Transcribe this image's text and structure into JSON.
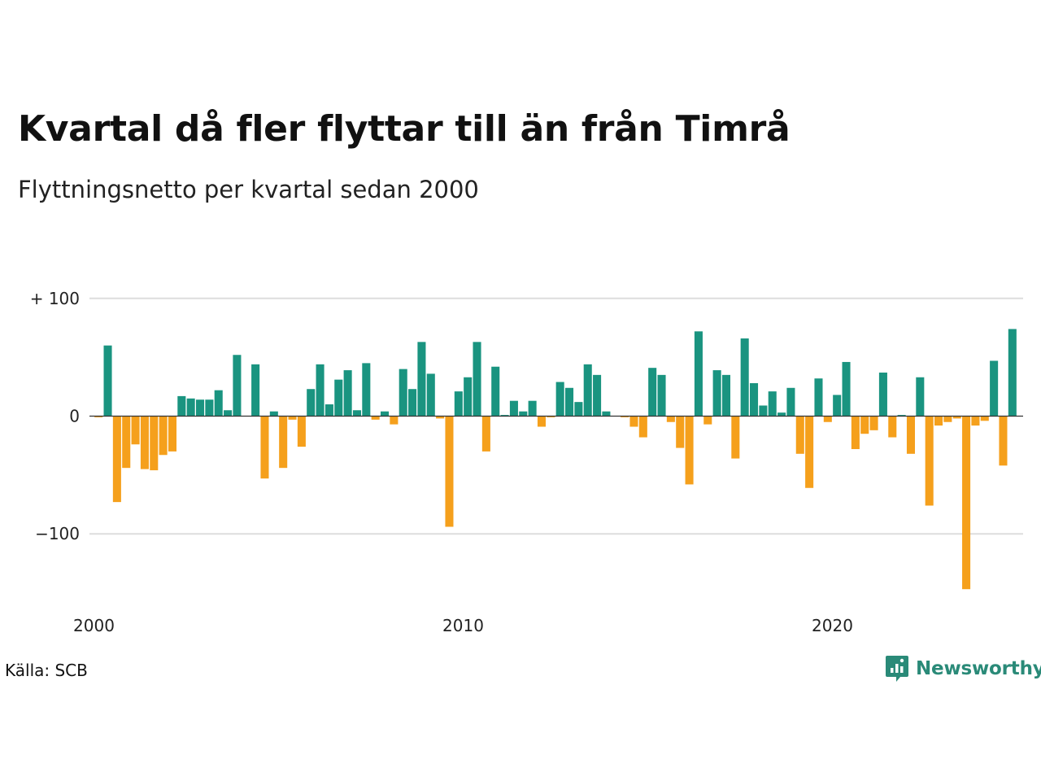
{
  "header": {
    "title": "Kvartal då fler flyttar till än från Timrå",
    "subtitle": "Flyttningsnetto per kvartal sedan 2000"
  },
  "footer": {
    "source": "Källa: SCB",
    "brand": "Newsworthy"
  },
  "colors": {
    "positive": "#1a9480",
    "negative": "#f5a01c",
    "grid": "#dddddd",
    "zero_line": "#333333",
    "brand": "#2a8a78"
  },
  "chart_data": {
    "type": "bar",
    "title": "Kvartal då fler flyttar till än från Timrå",
    "subtitle": "Flyttningsnetto per kvartal sedan 2000",
    "xlabel": "",
    "ylabel": "",
    "ylim": [
      -150,
      100
    ],
    "xlim": [
      2000,
      2025.25
    ],
    "grid": true,
    "y_ticks": [
      100,
      0,
      -100
    ],
    "y_tick_labels": [
      "+ 100",
      "0",
      "−100"
    ],
    "x_ticks": [
      2000,
      2010,
      2020
    ],
    "x_tick_labels": [
      "2000",
      "2010",
      "2020"
    ],
    "x_start_year": 2000,
    "values": [
      -1,
      60,
      -73,
      -44,
      -24,
      -45,
      -46,
      -33,
      -30,
      17,
      15,
      14,
      14,
      22,
      5,
      52,
      0,
      44,
      -53,
      4,
      -44,
      -3,
      -26,
      23,
      44,
      10,
      31,
      39,
      5,
      45,
      -3,
      4,
      -7,
      40,
      23,
      63,
      36,
      -2,
      -94,
      21,
      33,
      63,
      -30,
      42,
      1,
      13,
      4,
      13,
      -9,
      -1,
      29,
      24,
      12,
      44,
      35,
      4,
      0,
      -1,
      -9,
      -18,
      41,
      35,
      -5,
      -27,
      -58,
      72,
      -7,
      39,
      35,
      -36,
      66,
      28,
      9,
      21,
      3,
      24,
      -32,
      -61,
      32,
      -5,
      18,
      46,
      -28,
      -15,
      -12,
      37,
      -18,
      1,
      -32,
      33,
      -76,
      -8,
      -5,
      -2,
      -147,
      -8,
      -4,
      47,
      -42,
      74
    ]
  }
}
